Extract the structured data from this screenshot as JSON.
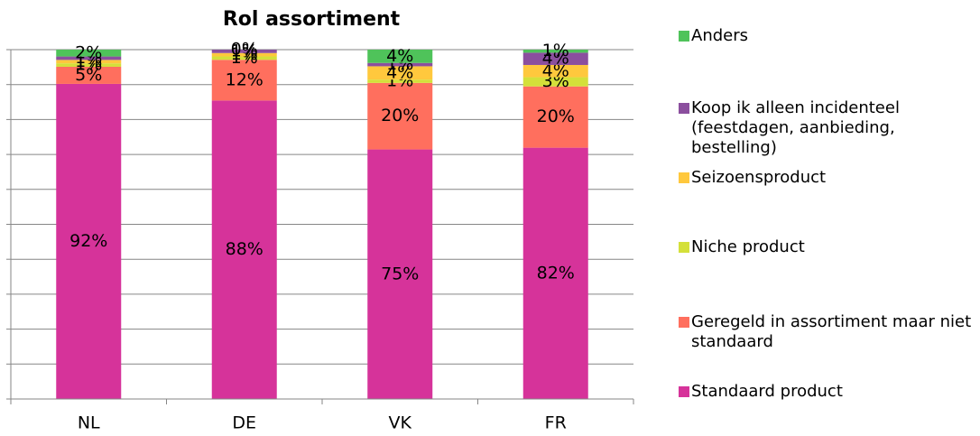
{
  "chart_data": {
    "type": "bar",
    "stacking": "percent",
    "title": "Rol assortiment",
    "categories": [
      "NL",
      "DE",
      "VK",
      "FR"
    ],
    "series": [
      {
        "name": "Standaard product",
        "color": "#d6339a",
        "values": [
          92,
          88,
          75,
          82
        ]
      },
      {
        "name": "Geregeld in assortiment maar niet standaard",
        "color": "#ff6f5e",
        "values": [
          5,
          12,
          20,
          20
        ]
      },
      {
        "name": "Niche product",
        "color": "#d4e03a",
        "values": [
          1,
          1,
          1,
          3
        ]
      },
      {
        "name": "Seizoensproduct",
        "color": "#ffc83d",
        "values": [
          1,
          1,
          4,
          4
        ]
      },
      {
        "name": "Koop ik alleen incidenteel (feestdagen, aanbieding, bestelling)",
        "color": "#8b4f9e",
        "values": [
          1,
          1,
          1,
          4
        ]
      },
      {
        "name": "Anders",
        "color": "#4fc35a",
        "values": [
          2,
          0,
          4,
          1
        ]
      }
    ],
    "value_labels": [
      [
        "92%",
        "88%",
        "75%",
        "82%"
      ],
      [
        "5%",
        "12%",
        "20%",
        "20%"
      ],
      [
        "1%",
        "1%",
        "1%",
        "3%"
      ],
      [
        "1%",
        "1%",
        "4%",
        "4%"
      ],
      [
        "1%",
        "1%",
        "1%",
        "4%"
      ],
      [
        "2%",
        "0%",
        "4%",
        "1%"
      ]
    ],
    "ylim": [
      0,
      100
    ],
    "yticks": [
      0,
      10,
      20,
      30,
      40,
      50,
      60,
      70,
      80,
      90,
      100
    ],
    "grid": true,
    "legend": "right"
  }
}
